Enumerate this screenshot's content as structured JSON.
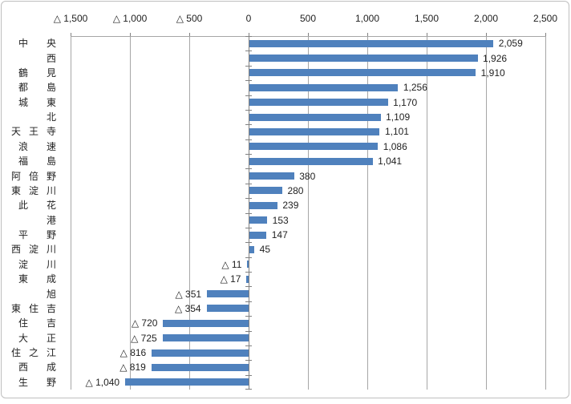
{
  "frame": {
    "background": "#FFFFFF",
    "border_color": "#BFBFBF"
  },
  "chart_data": {
    "type": "bar",
    "orientation": "horizontal",
    "title": "",
    "xlabel": "",
    "ylabel": "",
    "grid": true,
    "legend": false,
    "value_labels_shown": true,
    "negative_notation": "triangle",
    "bar_color": "#4F81BD",
    "gridline_color": "#A6A6A6",
    "axis_color": "#808080",
    "tick_color": "#808080",
    "text_color": "#1F1F1F",
    "xlim": [
      -1500,
      2500
    ],
    "x_ticks": [
      -1500,
      -1000,
      -500,
      0,
      500,
      1000,
      1500,
      2000,
      2500
    ],
    "x_tick_labels": [
      "△ 1,500",
      "△ 1,000",
      "△ 500",
      "0",
      "500",
      "1,000",
      "1,500",
      "2,000",
      "2,500"
    ],
    "rows": [
      {
        "category": "中央",
        "value": 2059,
        "label": "2,059"
      },
      {
        "category": "西",
        "value": 1926,
        "label": "1,926"
      },
      {
        "category": "鶴見",
        "value": 1910,
        "label": "1,910"
      },
      {
        "category": "都島",
        "value": 1256,
        "label": "1,256"
      },
      {
        "category": "城東",
        "value": 1170,
        "label": "1,170"
      },
      {
        "category": "北",
        "value": 1109,
        "label": "1,109"
      },
      {
        "category": "天王寺",
        "value": 1101,
        "label": "1,101"
      },
      {
        "category": "浪速",
        "value": 1086,
        "label": "1,086"
      },
      {
        "category": "福島",
        "value": 1041,
        "label": "1,041"
      },
      {
        "category": "阿倍野",
        "value": 380,
        "label": "380"
      },
      {
        "category": "東淀川",
        "value": 280,
        "label": "280"
      },
      {
        "category": "此花",
        "value": 239,
        "label": "239"
      },
      {
        "category": "港",
        "value": 153,
        "label": "153"
      },
      {
        "category": "平野",
        "value": 147,
        "label": "147"
      },
      {
        "category": "西淀川",
        "value": 45,
        "label": "45"
      },
      {
        "category": "淀川",
        "value": -11,
        "label": "△ 11"
      },
      {
        "category": "東成",
        "value": -17,
        "label": "△ 17"
      },
      {
        "category": "旭",
        "value": -351,
        "label": "△ 351"
      },
      {
        "category": "東住吉",
        "value": -354,
        "label": "△ 354"
      },
      {
        "category": "住吉",
        "value": -720,
        "label": "△ 720"
      },
      {
        "category": "大正",
        "value": -725,
        "label": "△ 725"
      },
      {
        "category": "住之江",
        "value": -816,
        "label": "△ 816"
      },
      {
        "category": "西成",
        "value": -819,
        "label": "△ 819"
      },
      {
        "category": "生野",
        "value": -1040,
        "label": "△ 1,040"
      }
    ]
  }
}
